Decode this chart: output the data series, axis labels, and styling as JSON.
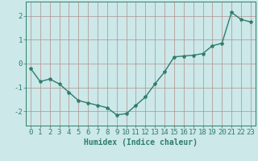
{
  "x": [
    0,
    1,
    2,
    3,
    4,
    5,
    6,
    7,
    8,
    9,
    10,
    11,
    12,
    13,
    14,
    15,
    16,
    17,
    18,
    19,
    20,
    21,
    22,
    23
  ],
  "y": [
    -0.2,
    -0.75,
    -0.65,
    -0.85,
    -1.2,
    -1.55,
    -1.65,
    -1.75,
    -1.85,
    -2.15,
    -2.1,
    -1.75,
    -1.4,
    -0.85,
    -0.35,
    0.28,
    0.32,
    0.35,
    0.42,
    0.75,
    0.85,
    2.15,
    1.85,
    1.75
  ],
  "line_color": "#2e7d6e",
  "marker": "*",
  "marker_size": 3,
  "bg_color": "#cce8e8",
  "grid_color": "#b09090",
  "xlabel": "Humidex (Indice chaleur)",
  "xlim": [
    -0.5,
    23.5
  ],
  "ylim": [
    -2.6,
    2.6
  ],
  "yticks": [
    -2,
    -1,
    0,
    1,
    2
  ],
  "xticks": [
    0,
    1,
    2,
    3,
    4,
    5,
    6,
    7,
    8,
    9,
    10,
    11,
    12,
    13,
    14,
    15,
    16,
    17,
    18,
    19,
    20,
    21,
    22,
    23
  ],
  "xlabel_fontsize": 7,
  "tick_fontsize": 6.5,
  "line_width": 1.0
}
